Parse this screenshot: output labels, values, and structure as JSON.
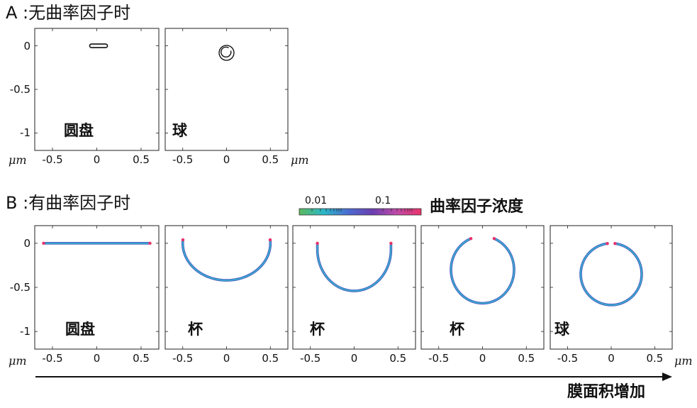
{
  "section_a": {
    "title": "A :无曲率因子时",
    "panels": [
      {
        "label": "圆盘",
        "shape": "disk",
        "color": "#111111"
      },
      {
        "label": "球",
        "shape": "sphere",
        "color": "#111111"
      }
    ]
  },
  "section_b": {
    "title": "B :有曲率因子时",
    "colorbar": {
      "title": "曲率因子浓度",
      "tick_labels": [
        "0.01",
        "0.1"
      ],
      "colors": [
        "#5cb85c",
        "#2ab8c8",
        "#4a6bd0",
        "#6a3fb0",
        "#c04aa8",
        "#e8326a"
      ]
    },
    "panels": [
      {
        "label": "圆盘",
        "shape": "disk"
      },
      {
        "label": "杯",
        "shape": "cup1"
      },
      {
        "label": "杯",
        "shape": "cup2"
      },
      {
        "label": "杯",
        "shape": "cup3"
      },
      {
        "label": "球",
        "shape": "sphere"
      }
    ],
    "membrane_colors": {
      "outer": "#4a5bc0",
      "inner": "#36b6d0",
      "tip": "#e8326a"
    }
  },
  "axes": {
    "y_ticks": [
      "0",
      "-0.5",
      "-1"
    ],
    "x_ticks": [
      "-0.5",
      "0",
      "0.5"
    ],
    "unit": "μm"
  },
  "arrow_label": "膜面积增加"
}
